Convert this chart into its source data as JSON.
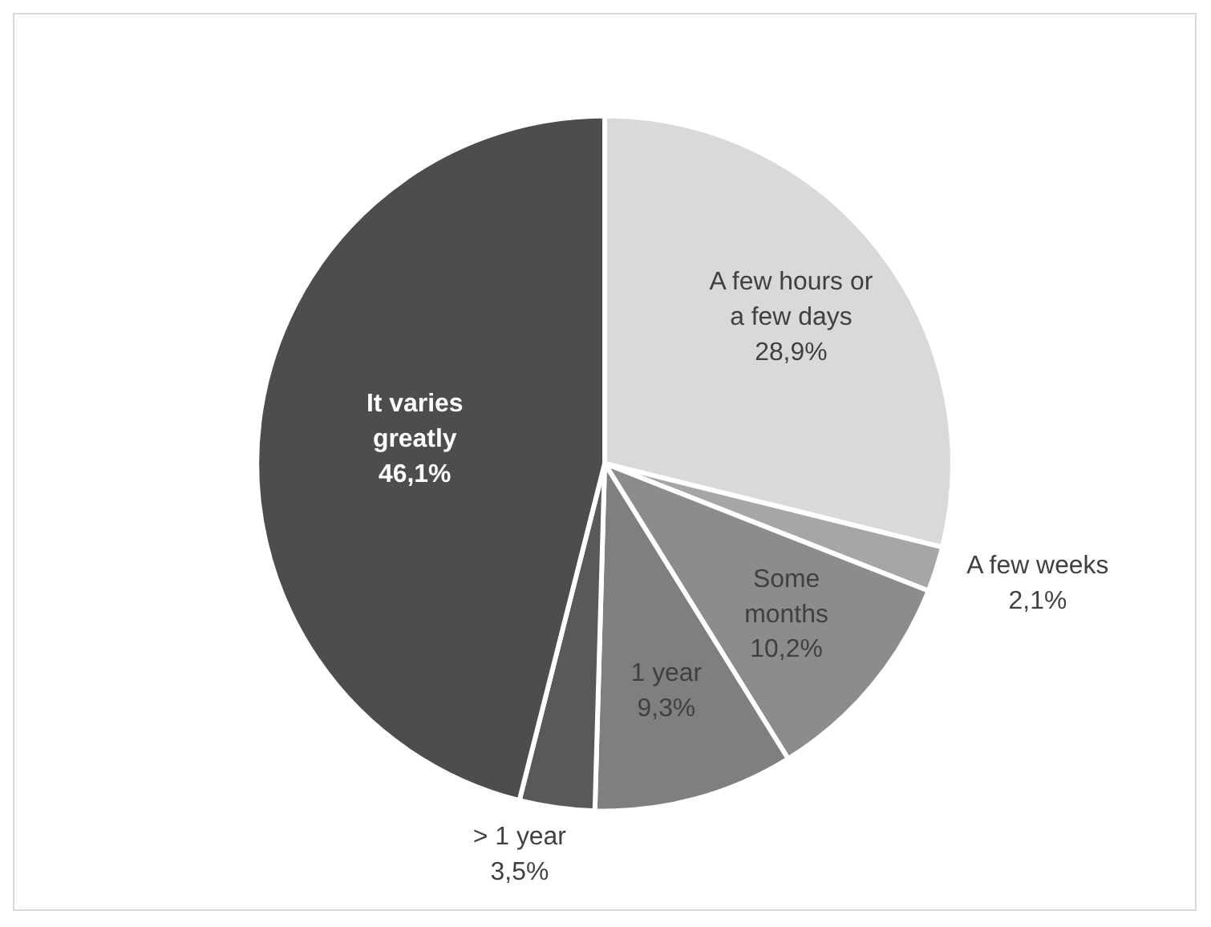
{
  "chart_data": {
    "type": "pie",
    "categories": [
      "A few hours or a few days",
      "A few weeks",
      "Some months",
      "1 year",
      "> 1 year",
      "It varies greatly"
    ],
    "values": [
      28.9,
      2.1,
      10.2,
      9.3,
      3.5,
      46.1
    ],
    "value_labels": [
      "28,9%",
      "2,1%",
      "10,2%",
      "9,3%",
      "3,5%",
      "46,1%"
    ],
    "colors": [
      "#d9d9d9",
      "#a6a6a6",
      "#8c8c8c",
      "#7f7f7f",
      "#595959",
      "#4d4d4d"
    ],
    "legend": false
  }
}
